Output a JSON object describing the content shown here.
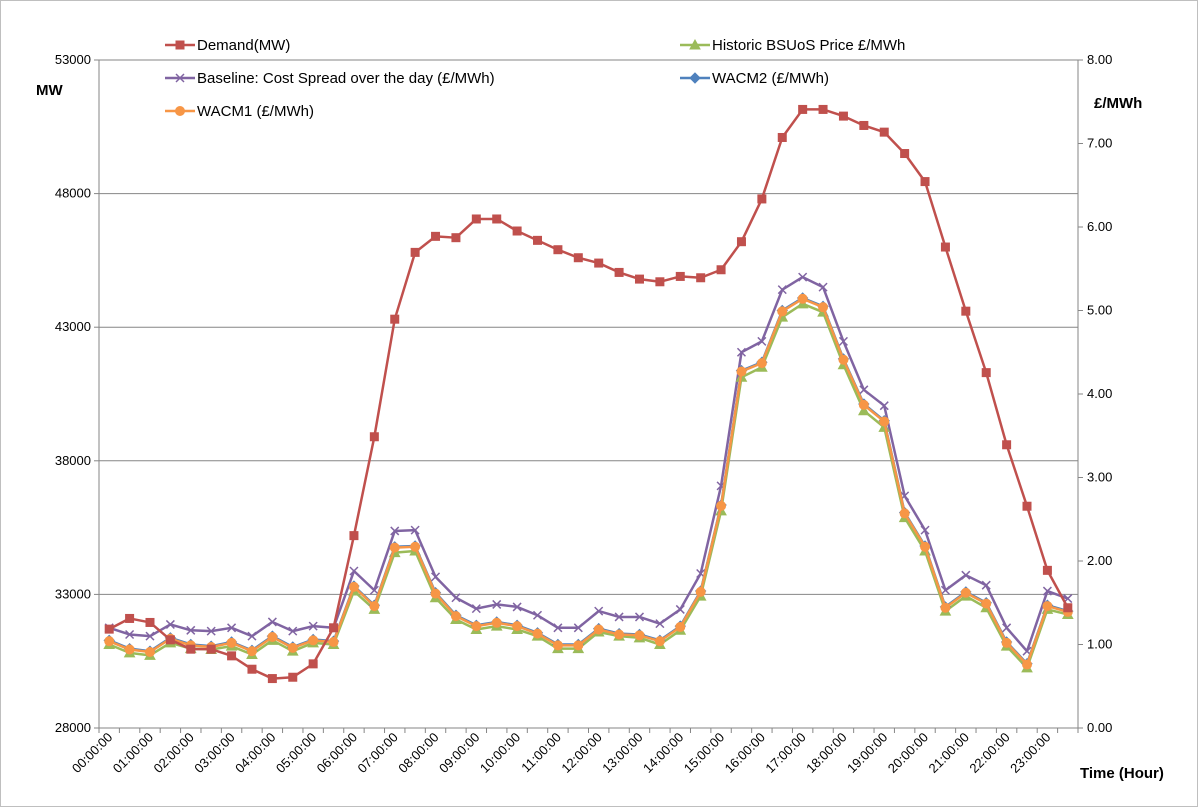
{
  "chart_data": {
    "type": "line",
    "title": "",
    "x": [
      "00:00:00",
      "00:30:00",
      "01:00:00",
      "01:30:00",
      "02:00:00",
      "02:30:00",
      "03:00:00",
      "03:30:00",
      "04:00:00",
      "04:30:00",
      "05:00:00",
      "05:30:00",
      "06:00:00",
      "06:30:00",
      "07:00:00",
      "07:30:00",
      "08:00:00",
      "08:30:00",
      "09:00:00",
      "09:30:00",
      "10:00:00",
      "10:30:00",
      "11:00:00",
      "11:30:00",
      "12:00:00",
      "12:30:00",
      "13:00:00",
      "13:30:00",
      "14:00:00",
      "14:30:00",
      "15:00:00",
      "15:30:00",
      "16:00:00",
      "16:30:00",
      "17:00:00",
      "17:30:00",
      "18:00:00",
      "18:30:00",
      "19:00:00",
      "19:30:00",
      "20:00:00",
      "20:30:00",
      "21:00:00",
      "21:30:00",
      "22:00:00",
      "22:30:00",
      "23:00:00",
      "23:30:00"
    ],
    "x_tick_labels": [
      "00:00:00",
      "01:00:00",
      "02:00:00",
      "03:00:00",
      "04:00:00",
      "05:00:00",
      "06:00:00",
      "07:00:00",
      "08:00:00",
      "09:00:00",
      "10:00:00",
      "11:00:00",
      "12:00:00",
      "13:00:00",
      "14:00:00",
      "15:00:00",
      "16:00:00",
      "17:00:00",
      "18:00:00",
      "19:00:00",
      "20:00:00",
      "21:00:00",
      "22:00:00",
      "23:00:00"
    ],
    "xlabel": "Time (Hour)",
    "ylabel_left": "MW",
    "ylabel_right": "£/MWh",
    "y_left_range": [
      28000,
      53000
    ],
    "y_left_ticks": [
      "28000",
      "33000",
      "38000",
      "43000",
      "48000",
      "53000"
    ],
    "y_right_range": [
      0,
      8
    ],
    "y_right_ticks": [
      "0.00",
      "1.00",
      "2.00",
      "3.00",
      "4.00",
      "5.00",
      "6.00",
      "7.00",
      "8.00"
    ],
    "grid": "horizontal",
    "legend_placement": "top",
    "series": [
      {
        "name": "Demand(MW)",
        "axis": "left",
        "color": "#c0504d",
        "marker": "square",
        "values": [
          31700,
          32100,
          31950,
          31300,
          30950,
          30950,
          30700,
          30200,
          29850,
          29900,
          30400,
          31750,
          35200,
          38900,
          43300,
          45800,
          46400,
          46350,
          47050,
          47050,
          46600,
          46250,
          45900,
          45600,
          45400,
          45050,
          44800,
          44700,
          44900,
          44850,
          45150,
          46200,
          47800,
          50100,
          51150,
          51150,
          50900,
          50550,
          50300,
          49500,
          48450,
          46000,
          43600,
          41300,
          38600,
          36300,
          33900,
          32500
        ]
      },
      {
        "name": "Historic BSUoS Price £/MWh",
        "axis": "right",
        "color": "#9bbb59",
        "marker": "triangle",
        "values": [
          1.0,
          0.9,
          0.87,
          1.02,
          0.95,
          0.94,
          0.98,
          0.88,
          1.05,
          0.92,
          1.02,
          1.0,
          1.64,
          1.42,
          2.1,
          2.12,
          1.56,
          1.3,
          1.18,
          1.22,
          1.18,
          1.1,
          0.95,
          0.95,
          1.15,
          1.1,
          1.08,
          1.0,
          1.17,
          1.58,
          2.6,
          4.2,
          4.32,
          4.92,
          5.08,
          4.98,
          4.35,
          3.8,
          3.6,
          2.52,
          2.12,
          1.4,
          1.58,
          1.44,
          0.98,
          0.72,
          1.42,
          1.36
        ]
      },
      {
        "name": "Baseline: Cost Spread over the day (£/MWh)",
        "axis": "right",
        "color": "#8064a2",
        "marker": "x",
        "values": [
          1.2,
          1.12,
          1.1,
          1.24,
          1.17,
          1.16,
          1.2,
          1.1,
          1.27,
          1.16,
          1.22,
          1.2,
          1.88,
          1.65,
          2.36,
          2.37,
          1.81,
          1.56,
          1.43,
          1.48,
          1.45,
          1.35,
          1.2,
          1.2,
          1.4,
          1.33,
          1.33,
          1.25,
          1.42,
          1.85,
          2.9,
          4.5,
          4.63,
          5.25,
          5.4,
          5.28,
          4.63,
          4.05,
          3.86,
          2.78,
          2.37,
          1.65,
          1.83,
          1.71,
          1.2,
          0.92,
          1.64,
          1.55
        ]
      },
      {
        "name": "WACM2 (£/MWh)",
        "axis": "right",
        "color": "#4f81bd",
        "marker": "diamond",
        "values": [
          1.05,
          0.95,
          0.92,
          1.08,
          1.0,
          0.98,
          1.03,
          0.93,
          1.1,
          0.97,
          1.06,
          1.04,
          1.7,
          1.47,
          2.17,
          2.18,
          1.62,
          1.35,
          1.23,
          1.27,
          1.23,
          1.14,
          1.0,
          1.0,
          1.19,
          1.13,
          1.12,
          1.05,
          1.22,
          1.64,
          2.67,
          4.28,
          4.38,
          5.0,
          5.15,
          5.05,
          4.42,
          3.88,
          3.68,
          2.58,
          2.18,
          1.45,
          1.63,
          1.5,
          1.03,
          0.77,
          1.47,
          1.4
        ]
      },
      {
        "name": "WACM1 (£/MWh)",
        "axis": "right",
        "color": "#f79646",
        "marker": "circle",
        "values": [
          1.04,
          0.94,
          0.91,
          1.07,
          0.99,
          0.97,
          1.02,
          0.92,
          1.09,
          0.96,
          1.05,
          1.03,
          1.69,
          1.46,
          2.16,
          2.17,
          1.61,
          1.34,
          1.22,
          1.26,
          1.22,
          1.13,
          0.99,
          0.99,
          1.18,
          1.12,
          1.11,
          1.04,
          1.21,
          1.63,
          2.66,
          4.27,
          4.37,
          4.99,
          5.14,
          5.04,
          4.41,
          3.87,
          3.67,
          2.57,
          2.17,
          1.44,
          1.62,
          1.49,
          1.02,
          0.76,
          1.46,
          1.39
        ]
      }
    ]
  }
}
